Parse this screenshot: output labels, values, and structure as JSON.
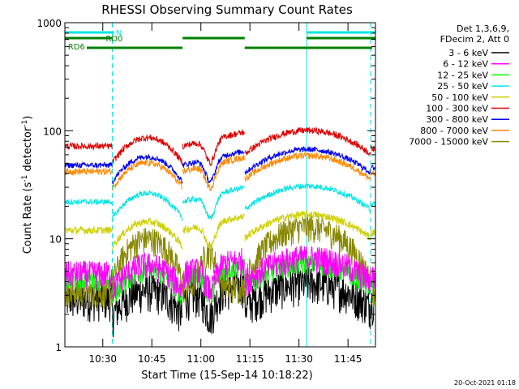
{
  "chart_data": {
    "type": "line",
    "title": "RHESSI Observing Summary Count Rates",
    "ylabel_main": "Count Rate (s",
    "ylabel_sup1": "-1",
    "ylabel_mid": " detector",
    "ylabel_sup2": "-1",
    "ylabel_end": ")",
    "xlabel": "Start Time (15-Sep-14 10:18:22)",
    "y_scale": "log",
    "ylim": [
      1,
      1000
    ],
    "xlim_minutes": [
      0,
      95
    ],
    "x_ticks": [
      {
        "label": "10:30",
        "min": 11.6
      },
      {
        "label": "10:45",
        "min": 26.6
      },
      {
        "label": "11:00",
        "min": 41.6
      },
      {
        "label": "11:15",
        "min": 56.6
      },
      {
        "label": "11:30",
        "min": 71.6
      },
      {
        "label": "11:45",
        "min": 86.6
      }
    ],
    "y_ticks": [
      {
        "label": "1",
        "value": 1
      },
      {
        "label": "10",
        "value": 10
      },
      {
        "label": "100",
        "value": 100
      },
      {
        "label": "1000",
        "value": 1000
      }
    ],
    "legend_header": [
      "Det 1,3,6,9,",
      "FDecim 2, Att 0"
    ],
    "legend_position": "right",
    "timestamp": "20-Oct-2021 01:18",
    "flag_bars": [
      {
        "label": "N",
        "color": "#00e5e5",
        "segments": [
          [
            0,
            15
          ],
          [
            74,
            95
          ]
        ]
      },
      {
        "label": "RD0",
        "color": "#008000",
        "segments": [
          [
            0,
            14.5
          ],
          [
            36,
            55
          ],
          [
            74,
            95
          ]
        ]
      },
      {
        "label": "RD6",
        "color": "#008000",
        "segments": [
          [
            6.7,
            36
          ],
          [
            55,
            94
          ]
        ]
      }
    ],
    "night_boundaries_solid": [
      0,
      74
    ],
    "night_boundaries_dashed": [
      14.5,
      93.5
    ],
    "series": [
      {
        "name": "3 - 6 keV",
        "color": "#000000"
      },
      {
        "name": "6 - 12 keV",
        "color": "#ff00ff"
      },
      {
        "name": "12 - 25 keV",
        "color": "#00ff00"
      },
      {
        "name": "25 - 50 keV",
        "color": "#00e5e5"
      },
      {
        "name": "50 - 100 keV",
        "color": "#d0d000"
      },
      {
        "name": "100 - 300 keV",
        "color": "#dd0000"
      },
      {
        "name": "300 - 800 keV",
        "color": "#0000ee"
      },
      {
        "name": "800 - 7000 keV",
        "color": "#ff8800"
      },
      {
        "name": "7000 - 15000 keV",
        "color": "#888800"
      }
    ]
  }
}
